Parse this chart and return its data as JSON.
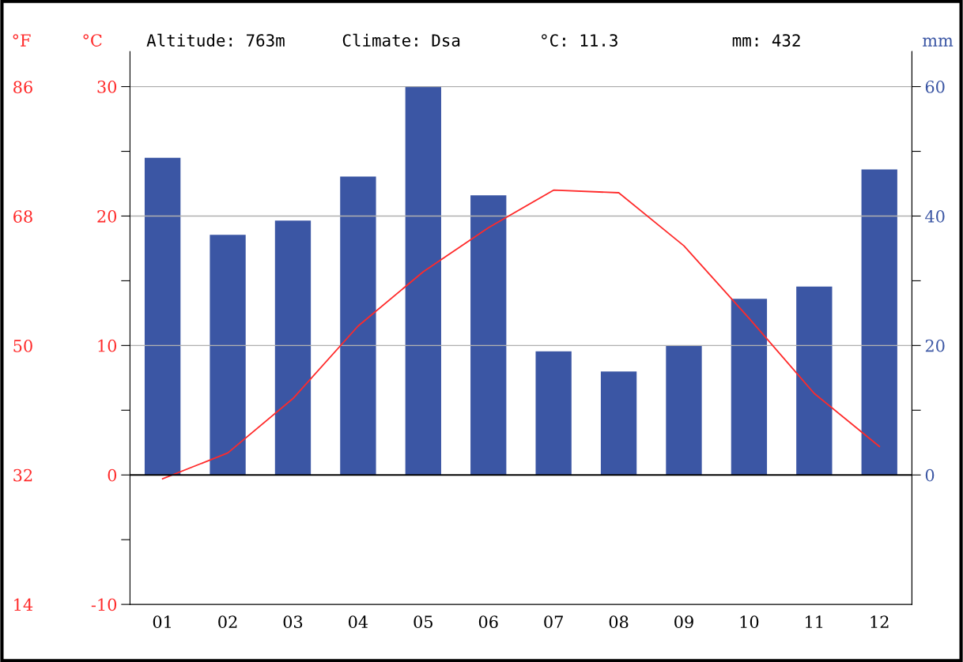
{
  "chart_data": {
    "type": "bar",
    "categories": [
      "01",
      "02",
      "03",
      "04",
      "05",
      "06",
      "07",
      "08",
      "09",
      "10",
      "11",
      "12"
    ],
    "series": [
      {
        "axis": "y2",
        "color": "#3b56a4",
        "values": [
          49.0,
          37.1,
          39.3,
          46.1,
          60.0,
          43.2,
          19.1,
          16.0,
          20.0,
          27.2,
          29.1,
          47.2
        ]
      },
      {
        "type": "line",
        "axis": "y",
        "color": "#ff2a2a",
        "values": [
          -0.3,
          1.7,
          5.9,
          11.5,
          15.7,
          19.1,
          22.0,
          21.8,
          17.7,
          12.1,
          6.3,
          2.2
        ]
      }
    ],
    "ylabel": "°C",
    "y2label": "mm",
    "y3label": "°F",
    "ylim": [
      -10,
      32.7
    ],
    "yticks": [
      -10,
      {
        "value": -5,
        "label": null
      },
      0,
      {
        "value": 5,
        "label": null
      },
      10,
      {
        "value": 15,
        "label": null
      },
      20,
      {
        "value": 25,
        "label": null
      },
      30
    ],
    "y2lim": [
      -20,
      65.4
    ],
    "y2ticks": [
      0,
      {
        "value": 10,
        "label": null
      },
      20,
      {
        "value": 30,
        "label": null
      },
      40,
      {
        "value": 50,
        "label": null
      },
      60
    ],
    "y3lim": [
      14,
      90.9
    ],
    "y3ticks": [
      14,
      32,
      50,
      68,
      86
    ],
    "grid": "y",
    "ref_lines": [
      {
        "axis": "y",
        "value": 0,
        "color": "#000000"
      }
    ],
    "annotations": [
      "Altitude: 763m",
      "Climate: Dsa",
      "°C: 11.3",
      "mm: 432"
    ],
    "line_style": "solid",
    "marker": "none"
  }
}
